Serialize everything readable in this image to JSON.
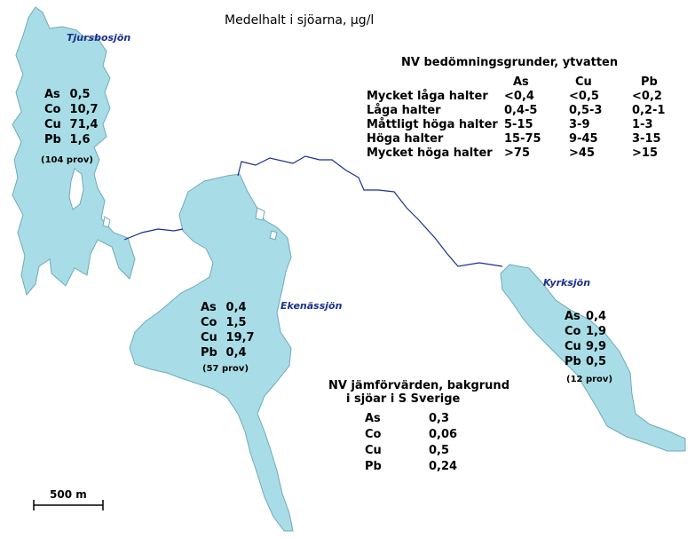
{
  "title": "Medelhalt i sjöarna, µg/l",
  "colors": {
    "water": "#a8dde7",
    "stream": "#1b2f8c",
    "label": "#1b2f8c"
  },
  "lakes": [
    {
      "name": "Tjursbosjön",
      "metals": [
        {
          "el": "As",
          "val": "0,5"
        },
        {
          "el": "Co",
          "val": "10,7"
        },
        {
          "el": "Cu",
          "val": "71,4"
        },
        {
          "el": "Pb",
          "val": "1,6"
        }
      ],
      "samples": "(104 prov)"
    },
    {
      "name": "Ekenässjön",
      "metals": [
        {
          "el": "As",
          "val": "0,4"
        },
        {
          "el": "Co",
          "val": "1,5"
        },
        {
          "el": "Cu",
          "val": "19,7"
        },
        {
          "el": "Pb",
          "val": "0,4"
        }
      ],
      "samples": "(57 prov)"
    },
    {
      "name": "Kyrksjön",
      "metals": [
        {
          "el": "As",
          "val": "0,4"
        },
        {
          "el": "Co",
          "val": "1,9"
        },
        {
          "el": "Cu",
          "val": "9,9"
        },
        {
          "el": "Pb",
          "val": "0,5"
        }
      ],
      "samples": "(12 prov)"
    }
  ],
  "criteria": {
    "title": "NV bedömningsgrunder, ytvatten",
    "columns": [
      "As",
      "Cu",
      "Pb"
    ],
    "rows": [
      {
        "label": "Mycket låga halter",
        "values": [
          "<0,4",
          "<0,5",
          "<0,2"
        ]
      },
      {
        "label": "Låga halter",
        "values": [
          "0,4-5",
          "0,5-3",
          "0,2-1"
        ]
      },
      {
        "label": "Måttligt höga halter",
        "values": [
          "5-15",
          "3-9",
          "1-3"
        ]
      },
      {
        "label": "Höga halter",
        "values": [
          "15-75",
          "9-45",
          "3-15"
        ]
      },
      {
        "label": "Mycket höga halter",
        "values": [
          ">75",
          ">45",
          ">15"
        ]
      }
    ]
  },
  "background": {
    "title_line1": "NV jämförvärden, bakgrund",
    "title_line2": "i sjöar i S Sverige",
    "rows": [
      {
        "el": "As",
        "val": "0,3"
      },
      {
        "el": "Co",
        "val": "0,06"
      },
      {
        "el": "Cu",
        "val": "0,5"
      },
      {
        "el": "Pb",
        "val": "0,24"
      }
    ]
  },
  "scale": {
    "label": "500 m"
  }
}
